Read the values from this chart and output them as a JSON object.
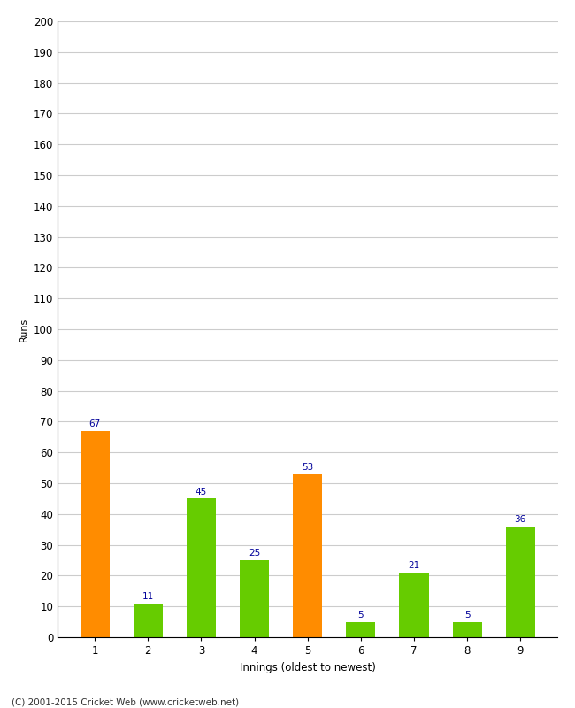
{
  "categories": [
    "1",
    "2",
    "3",
    "4",
    "5",
    "6",
    "7",
    "8",
    "9"
  ],
  "values": [
    67,
    11,
    45,
    25,
    53,
    5,
    21,
    5,
    36
  ],
  "bar_colors": [
    "#ff8c00",
    "#66cc00",
    "#66cc00",
    "#66cc00",
    "#ff8c00",
    "#66cc00",
    "#66cc00",
    "#66cc00",
    "#66cc00"
  ],
  "title": "",
  "xlabel": "Innings (oldest to newest)",
  "ylabel": "Runs",
  "ylim": [
    0,
    200
  ],
  "yticks": [
    0,
    10,
    20,
    30,
    40,
    50,
    60,
    70,
    80,
    90,
    100,
    110,
    120,
    130,
    140,
    150,
    160,
    170,
    180,
    190,
    200
  ],
  "label_color": "#000099",
  "label_fontsize": 7.5,
  "axis_fontsize": 8.5,
  "ylabel_fontsize": 8,
  "background_color": "#ffffff",
  "grid_color": "#cccccc",
  "footer_text": "(C) 2001-2015 Cricket Web (www.cricketweb.net)"
}
